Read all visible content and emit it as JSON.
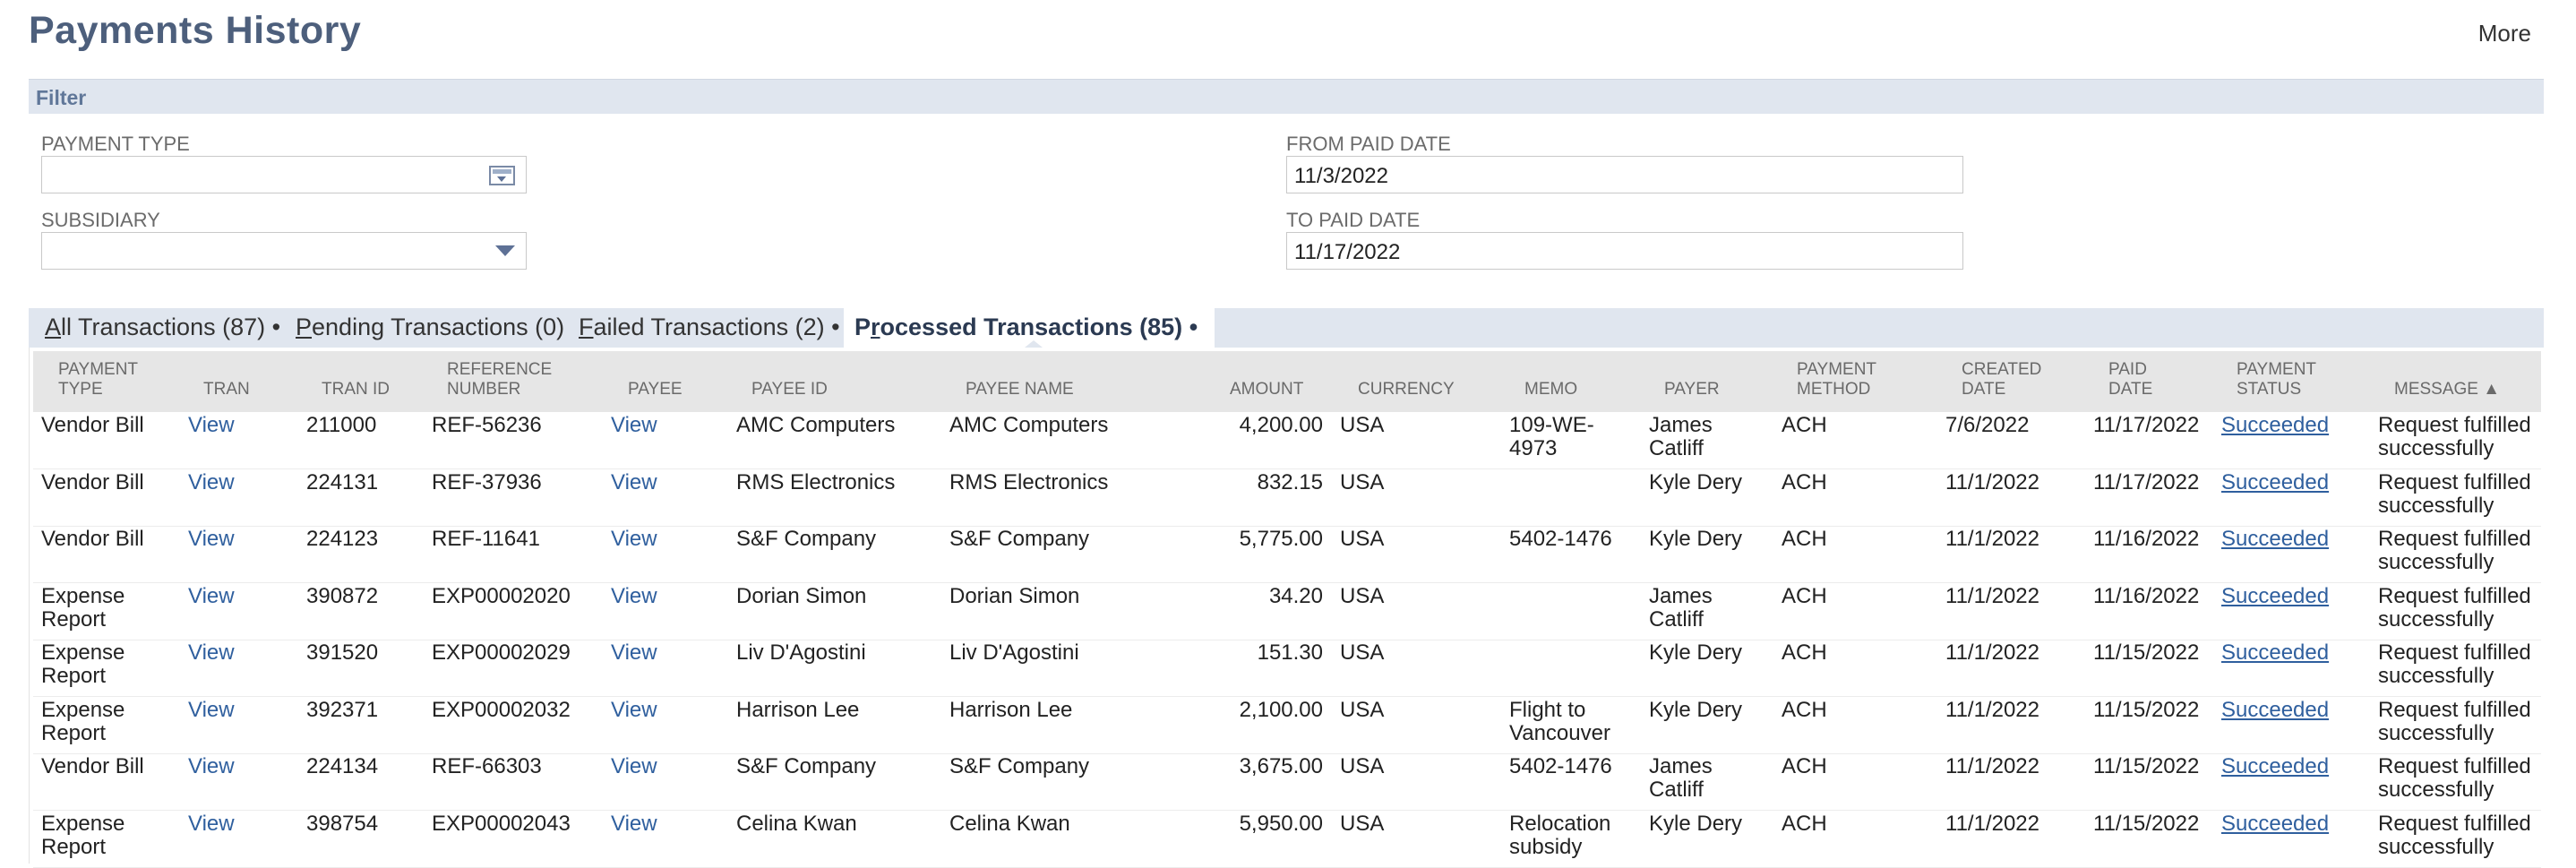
{
  "page": {
    "title": "Payments History",
    "more_label": "More"
  },
  "filter": {
    "header": "Filter",
    "payment_type": {
      "label": "PAYMENT TYPE",
      "value": ""
    },
    "subsidiary": {
      "label": "SUBSIDIARY",
      "value": ""
    },
    "from_paid_date": {
      "label": "FROM PAID DATE",
      "value": "11/3/2022"
    },
    "to_paid_date": {
      "label": "TO PAID DATE",
      "value": "11/17/2022"
    }
  },
  "tabs": [
    {
      "access": "A",
      "rest": "ll Transactions (87)",
      "bullet": "•"
    },
    {
      "access": "P",
      "rest": "ending Transactions (0)",
      "bullet": ""
    },
    {
      "access": "F",
      "rest": "ailed Transactions (2)",
      "bullet": "•"
    },
    {
      "pre": "P",
      "access": "r",
      "rest": "ocessed Transactions (85)",
      "bullet": "•"
    }
  ],
  "columns": {
    "payment_type": [
      "PAYMENT",
      "TYPE"
    ],
    "tran": [
      "TRAN"
    ],
    "tran_id": [
      "TRAN ID"
    ],
    "reference_number": [
      "REFERENCE",
      "NUMBER"
    ],
    "payee": [
      "PAYEE"
    ],
    "payee_id": [
      "PAYEE ID"
    ],
    "payee_name": [
      "PAYEE NAME"
    ],
    "amount": [
      "AMOUNT"
    ],
    "currency": [
      "CURRENCY"
    ],
    "memo": [
      "MEMO"
    ],
    "payer": [
      "PAYER"
    ],
    "payment_method": [
      "PAYMENT",
      "METHOD"
    ],
    "created_date": [
      "CREATED",
      "DATE"
    ],
    "paid_date": [
      "PAID",
      "DATE"
    ],
    "payment_status": [
      "PAYMENT",
      "STATUS"
    ],
    "message": [
      "MESSAGE ▲"
    ]
  },
  "rows": [
    {
      "type": [
        "Vendor Bill"
      ],
      "tran": "View",
      "tran_id": "211000",
      "ref": "REF-56236",
      "payee": "View",
      "payee_id": "AMC Computers",
      "payee_name": "AMC Computers",
      "amount": "4,200.00",
      "currency": "USA",
      "memo": [
        "109-WE-",
        "4973"
      ],
      "payer": [
        "James",
        "Catliff"
      ],
      "method": "ACH",
      "created": "7/6/2022",
      "paid": "11/17/2022",
      "status": "Succeeded",
      "message": [
        "Request fulfilled",
        "successfully"
      ]
    },
    {
      "type": [
        "Vendor Bill"
      ],
      "tran": "View",
      "tran_id": "224131",
      "ref": "REF-37936",
      "payee": "View",
      "payee_id": "RMS Electronics",
      "payee_name": "RMS Electronics",
      "amount": "832.15",
      "currency": "USA",
      "memo": [
        ""
      ],
      "payer": [
        "Kyle Dery"
      ],
      "method": "ACH",
      "created": "11/1/2022",
      "paid": "11/17/2022",
      "status": "Succeeded",
      "message": [
        "Request fulfilled",
        "successfully"
      ]
    },
    {
      "type": [
        "Vendor Bill"
      ],
      "tran": "View",
      "tran_id": "224123",
      "ref": "REF-11641",
      "payee": "View",
      "payee_id": "S&F Company",
      "payee_name": "S&F Company",
      "amount": "5,775.00",
      "currency": "USA",
      "memo": [
        "5402-1476"
      ],
      "payer": [
        "Kyle Dery"
      ],
      "method": "ACH",
      "created": "11/1/2022",
      "paid": "11/16/2022",
      "status": "Succeeded",
      "message": [
        "Request fulfilled",
        "successfully"
      ]
    },
    {
      "type": [
        "Expense",
        "Report"
      ],
      "tran": "View",
      "tran_id": "390872",
      "ref": "EXP00002020",
      "payee": "View",
      "payee_id": "Dorian Simon",
      "payee_name": "Dorian Simon",
      "amount": "34.20",
      "currency": "USA",
      "memo": [
        ""
      ],
      "payer": [
        "James",
        "Catliff"
      ],
      "method": "ACH",
      "created": "11/1/2022",
      "paid": "11/16/2022",
      "status": "Succeeded",
      "message": [
        "Request fulfilled",
        "successfully"
      ]
    },
    {
      "type": [
        "Expense",
        "Report"
      ],
      "tran": "View",
      "tran_id": "391520",
      "ref": "EXP00002029",
      "payee": "View",
      "payee_id": "Liv D'Agostini",
      "payee_name": "Liv D'Agostini",
      "amount": "151.30",
      "currency": "USA",
      "memo": [
        ""
      ],
      "payer": [
        "Kyle Dery"
      ],
      "method": "ACH",
      "created": "11/1/2022",
      "paid": "11/15/2022",
      "status": "Succeeded",
      "message": [
        "Request fulfilled",
        "successfully"
      ]
    },
    {
      "type": [
        "Expense",
        "Report"
      ],
      "tran": "View",
      "tran_id": "392371",
      "ref": "EXP00002032",
      "payee": "View",
      "payee_id": "Harrison Lee",
      "payee_name": "Harrison Lee",
      "amount": "2,100.00",
      "currency": "USA",
      "memo": [
        "Flight to",
        "Vancouver"
      ],
      "payer": [
        "Kyle Dery"
      ],
      "method": "ACH",
      "created": "11/1/2022",
      "paid": "11/15/2022",
      "status": "Succeeded",
      "message": [
        "Request fulfilled",
        "successfully"
      ]
    },
    {
      "type": [
        "Vendor Bill"
      ],
      "tran": "View",
      "tran_id": "224134",
      "ref": "REF-66303",
      "payee": "View",
      "payee_id": "S&F Company",
      "payee_name": "S&F Company",
      "amount": "3,675.00",
      "currency": "USA",
      "memo": [
        "5402-1476"
      ],
      "payer": [
        "James",
        "Catliff"
      ],
      "method": "ACH",
      "created": "11/1/2022",
      "paid": "11/15/2022",
      "status": "Succeeded",
      "message": [
        "Request fulfilled",
        "successfully"
      ]
    },
    {
      "type": [
        "Expense",
        "Report"
      ],
      "tran": "View",
      "tran_id": "398754",
      "ref": "EXP00002043",
      "payee": "View",
      "payee_id": "Celina Kwan",
      "payee_name": "Celina Kwan",
      "amount": "5,950.00",
      "currency": "USA",
      "memo": [
        "Relocation",
        "subsidy"
      ],
      "payer": [
        "Kyle Dery"
      ],
      "method": "ACH",
      "created": "11/1/2022",
      "paid": "11/15/2022",
      "status": "Succeeded",
      "message": [
        "Request fulfilled",
        "successfully"
      ]
    }
  ]
}
